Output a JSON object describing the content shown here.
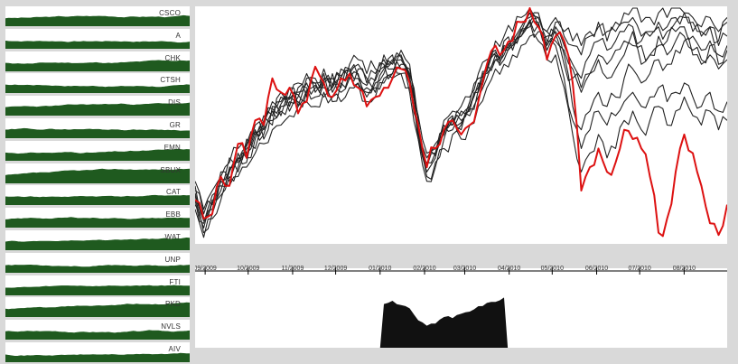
{
  "stocks": [
    {
      "symbol": "CSCO",
      "seed": 3
    },
    {
      "symbol": "A",
      "seed": 7
    },
    {
      "symbol": "CHK",
      "seed": 11
    },
    {
      "symbol": "CTSH",
      "seed": 17
    },
    {
      "symbol": "DIS",
      "seed": 23
    },
    {
      "symbol": "GR",
      "seed": 29
    },
    {
      "symbol": "EMN",
      "seed": 31
    },
    {
      "symbol": "SBUX",
      "seed": 37
    },
    {
      "symbol": "CAT",
      "seed": 41
    },
    {
      "symbol": "EBB",
      "seed": 43
    },
    {
      "symbol": "WAT",
      "seed": 47
    },
    {
      "symbol": "UNP",
      "seed": 53
    },
    {
      "symbol": "FTI",
      "seed": 59
    },
    {
      "symbol": "PKD",
      "seed": 61
    },
    {
      "symbol": "NVLS",
      "seed": 67
    },
    {
      "symbol": "AIV",
      "seed": 71
    }
  ],
  "chart_data": {
    "type": "line",
    "x_ticks": [
      "09/2009",
      "10/2009",
      "11/2009",
      "12/2009",
      "01/2010",
      "02/2010",
      "03/2010",
      "04/2010",
      "05/2010",
      "06/2010",
      "07/2010",
      "08/2010"
    ],
    "x_range": [
      "2009-08-25",
      "2010-08-31"
    ],
    "y_range": [
      0,
      100
    ],
    "highlight_color": "#dd1111",
    "line_color": "#222222",
    "sparkline_fill": "#1f5a1f",
    "context_fill": "#111111",
    "selection_range": [
      "2010-01-01",
      "2010-03-31"
    ],
    "highlighted": [
      18,
      10,
      12,
      28,
      24,
      42,
      36,
      52,
      50,
      70,
      64,
      66,
      55,
      60,
      75,
      68,
      62,
      70,
      72,
      66,
      58,
      62,
      66,
      70,
      74,
      68,
      50,
      32,
      40,
      48,
      52,
      46,
      50,
      60,
      76,
      84,
      82,
      86,
      94,
      100,
      92,
      78,
      88,
      86,
      68,
      22,
      32,
      40,
      30,
      34,
      48,
      44,
      40,
      28,
      4,
      10,
      30,
      46,
      38,
      24,
      8,
      3,
      16
    ],
    "series": [
      {
        "values": [
          20,
          6,
          14,
          26,
          30,
          34,
          40,
          48,
          46,
          56,
          58,
          62,
          60,
          64,
          68,
          62,
          66,
          70,
          74,
          68,
          66,
          70,
          76,
          72,
          78,
          70,
          48,
          30,
          36,
          46,
          54,
          50,
          56,
          64,
          74,
          82,
          80,
          86,
          92,
          96,
          98,
          90,
          94,
          88,
          84,
          80,
          88,
          92,
          86,
          90,
          94,
          96,
          88,
          90,
          94,
          92,
          96,
          98,
          94,
          90,
          92,
          86,
          96
        ]
      },
      {
        "values": [
          24,
          10,
          18,
          22,
          36,
          30,
          44,
          40,
          52,
          60,
          54,
          66,
          58,
          70,
          64,
          72,
          60,
          68,
          72,
          76,
          70,
          64,
          74,
          80,
          72,
          66,
          44,
          34,
          38,
          50,
          48,
          56,
          60,
          70,
          76,
          78,
          86,
          82,
          88,
          94,
          92,
          84,
          86,
          76,
          70,
          66,
          72,
          80,
          76,
          82,
          86,
          90,
          84,
          80,
          88,
          86,
          90,
          92,
          88,
          82,
          86,
          80,
          84
        ]
      },
      {
        "values": [
          18,
          8,
          20,
          30,
          26,
          38,
          34,
          50,
          44,
          58,
          62,
          56,
          66,
          62,
          70,
          66,
          72,
          64,
          70,
          74,
          68,
          72,
          78,
          74,
          76,
          72,
          52,
          28,
          34,
          44,
          50,
          54,
          58,
          66,
          72,
          80,
          84,
          88,
          90,
          98,
          94,
          88,
          90,
          80,
          58,
          48,
          56,
          64,
          58,
          62,
          70,
          74,
          68,
          72,
          78,
          76,
          82,
          86,
          80,
          76,
          80,
          74,
          78
        ]
      },
      {
        "values": [
          22,
          12,
          16,
          24,
          32,
          36,
          42,
          46,
          50,
          54,
          60,
          58,
          64,
          68,
          66,
          70,
          64,
          74,
          70,
          72,
          64,
          68,
          72,
          76,
          80,
          74,
          46,
          32,
          38,
          48,
          52,
          48,
          54,
          62,
          70,
          78,
          82,
          84,
          90,
          92,
          96,
          86,
          92,
          84,
          76,
          70,
          80,
          86,
          82,
          86,
          90,
          92,
          86,
          88,
          92,
          90,
          94,
          96,
          90,
          88,
          92,
          84,
          88
        ]
      },
      {
        "values": [
          16,
          4,
          12,
          20,
          28,
          32,
          36,
          44,
          48,
          52,
          56,
          60,
          62,
          66,
          62,
          68,
          70,
          66,
          74,
          70,
          62,
          66,
          70,
          72,
          74,
          68,
          50,
          36,
          40,
          46,
          50,
          52,
          58,
          68,
          74,
          80,
          78,
          84,
          88,
          94,
          90,
          82,
          84,
          70,
          52,
          40,
          48,
          56,
          50,
          54,
          60,
          64,
          58,
          62,
          66,
          60,
          64,
          68,
          62,
          58,
          64,
          56,
          60
        ]
      },
      {
        "values": [
          26,
          14,
          22,
          28,
          34,
          40,
          38,
          46,
          54,
          50,
          64,
          62,
          68,
          72,
          68,
          74,
          66,
          70,
          76,
          78,
          72,
          74,
          80,
          78,
          82,
          76,
          54,
          38,
          42,
          52,
          56,
          58,
          62,
          72,
          78,
          86,
          88,
          90,
          96,
          100,
          96,
          90,
          96,
          90,
          86,
          84,
          90,
          94,
          90,
          94,
          98,
          100,
          94,
          96,
          98,
          96,
          100,
          98,
          96,
          92,
          96,
          90,
          94
        ]
      },
      {
        "values": [
          14,
          2,
          10,
          18,
          24,
          28,
          32,
          38,
          42,
          48,
          50,
          54,
          58,
          60,
          58,
          64,
          62,
          60,
          66,
          68,
          60,
          62,
          68,
          70,
          72,
          64,
          44,
          26,
          32,
          40,
          46,
          44,
          50,
          58,
          66,
          74,
          76,
          80,
          84,
          88,
          86,
          78,
          80,
          66,
          46,
          30,
          38,
          46,
          36,
          40,
          52,
          56,
          48,
          52,
          58,
          50,
          56,
          62,
          54,
          50,
          56,
          48,
          52
        ]
      },
      {
        "values": [
          21,
          9,
          17,
          27,
          31,
          35,
          41,
          47,
          49,
          57,
          59,
          61,
          63,
          65,
          67,
          69,
          67,
          71,
          73,
          71,
          67,
          69,
          75,
          77,
          79,
          71,
          49,
          33,
          37,
          47,
          53,
          51,
          57,
          65,
          73,
          81,
          83,
          85,
          91,
          95,
          93,
          85,
          89,
          82,
          74,
          64,
          72,
          78,
          70,
          74,
          80,
          84,
          76,
          80,
          84,
          80,
          86,
          88,
          82,
          78,
          84,
          76,
          82
        ]
      }
    ]
  }
}
